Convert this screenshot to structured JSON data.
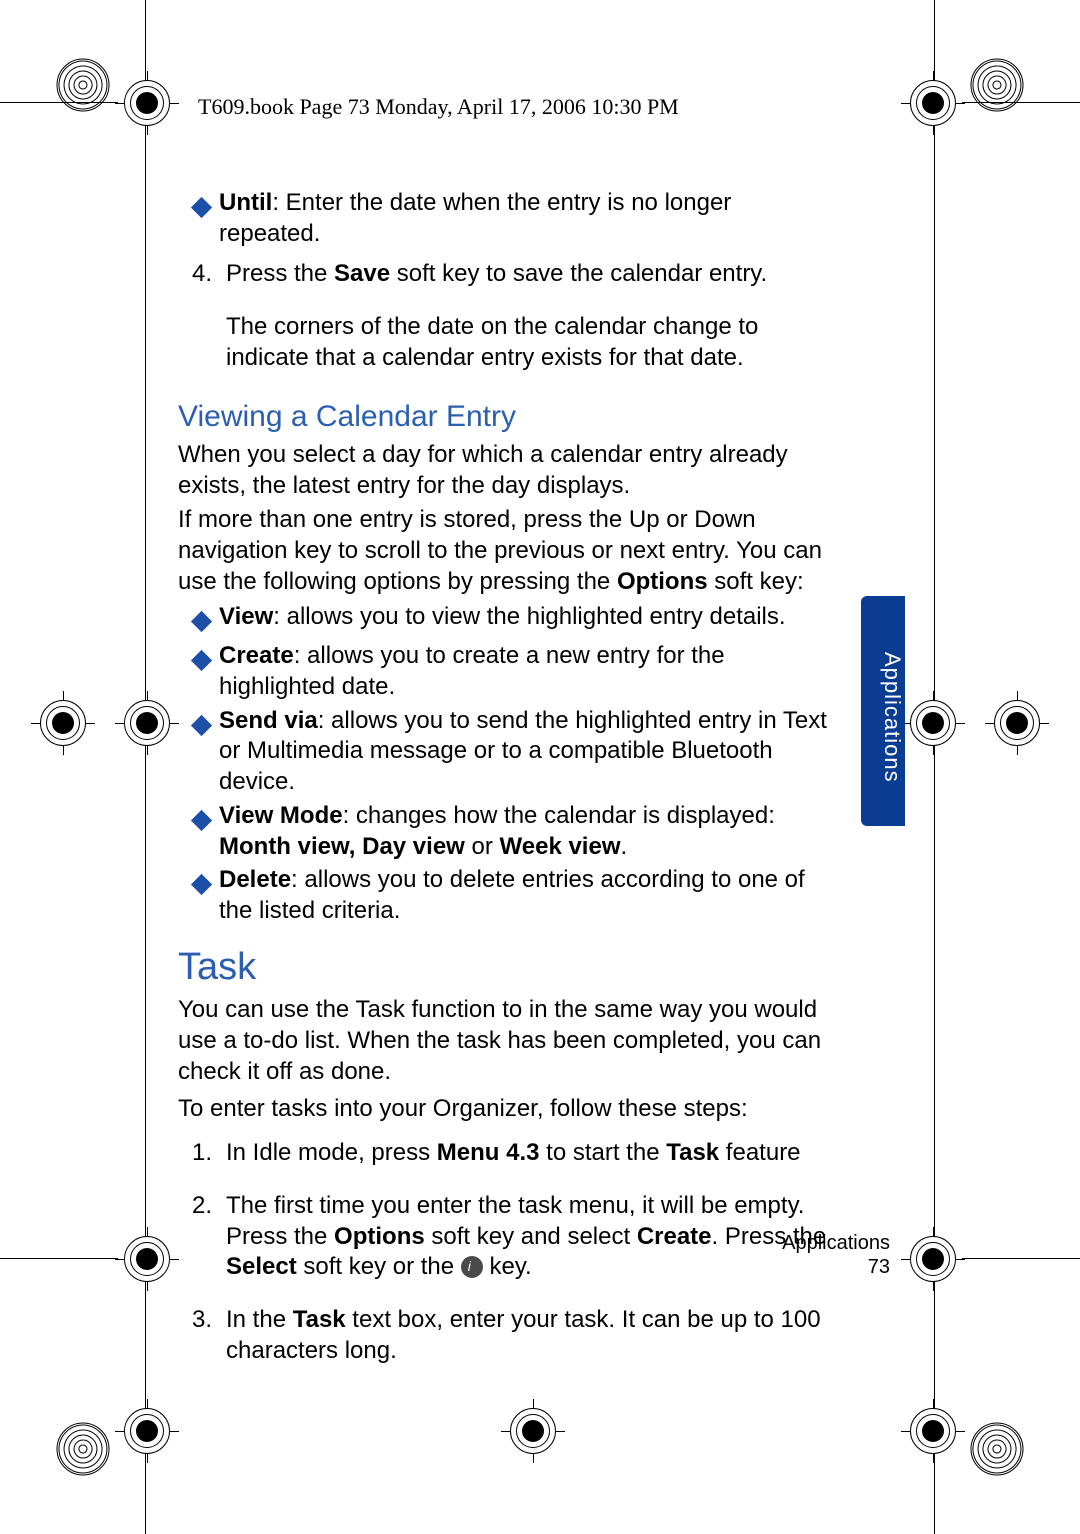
{
  "header": "T609.book  Page 73  Monday, April 17, 2006  10:30 PM",
  "side_tab": "Applications",
  "colors": {
    "accent_blue": "#2a5fb0",
    "diamond_blue": "#1b4fa8",
    "tab_blue": "#0a3d91",
    "text": "#000000",
    "bg": "#ffffff"
  },
  "bullets_top": [
    {
      "bold": "Until",
      "rest": ": Enter the date when the entry is no longer repeated."
    }
  ],
  "step4": {
    "num": "4.",
    "line1a": "Press the ",
    "line1b_bold": "Save",
    "line1c": " soft key to save the calendar entry.",
    "line2": "The corners of the date on the calendar change to indicate that a calendar entry exists for that date."
  },
  "section_view": {
    "title": "Viewing a Calendar Entry",
    "p1": "When you select a day for which a calendar entry already exists, the latest entry for the day displays.",
    "p2a": "If more than one entry is stored, press the Up or Down navigation key to scroll to the previous or next entry. You can use the following options by pressing the ",
    "p2b_bold": "Options",
    "p2c": " soft key:"
  },
  "bullets_view": [
    {
      "bold": "View",
      "rest": ": allows you to view the highlighted entry details."
    },
    {
      "bold": "Create",
      "rest": ": allows you to create a new entry for the highlighted date."
    },
    {
      "bold": "Send via",
      "rest": ": allows you to send the highlighted entry in Text or Multimedia message or to a compatible Bluetooth device."
    },
    {
      "bold": "View Mode",
      "rest": ": changes how the calendar is displayed: ",
      "bold2": "Month view, Day view",
      "rest2": " or ",
      "bold3": "Week view",
      "rest3": "."
    },
    {
      "bold": "Delete",
      "rest": ": allows you to delete entries according to one of the listed criteria."
    }
  ],
  "section_task": {
    "title": "Task",
    "p1": "You can use the Task function to in the same way you would use a to-do list. When the task has been completed, you can check it off as done.",
    "p2": "To enter tasks into your Organizer, follow these steps:"
  },
  "task_steps": [
    {
      "n": "1.",
      "pre": "In Idle mode, press ",
      "b1": "Menu 4.3",
      "mid": " to start the ",
      "b2": "Task",
      "post": " feature"
    },
    {
      "n": "2.",
      "pre": "The first time you enter the task menu, it will be empty. Press the ",
      "b1": "Options",
      "mid": " soft key and select ",
      "b2": "Create",
      "mid2": ". Press the ",
      "b3": "Select",
      "mid3": " soft key or the ",
      "icon": true,
      "post": " key."
    },
    {
      "n": "3.",
      "pre": "In the ",
      "b1": "Task",
      "mid": " text box, enter your task. It can be up to 100 characters long."
    }
  ],
  "footer": {
    "label": "Applications",
    "page": "73"
  }
}
